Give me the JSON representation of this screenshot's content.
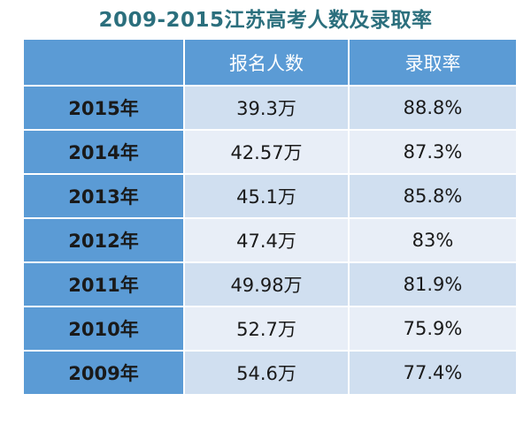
{
  "title": "2009-2015江苏高考人数及录取率",
  "table": {
    "headers": [
      "",
      "报名人数",
      "录取率"
    ],
    "rows": [
      {
        "year": "2015年",
        "applicants": "39.3万",
        "rate": "88.8%"
      },
      {
        "year": "2014年",
        "applicants": "42.57万",
        "rate": "87.3%"
      },
      {
        "year": "2013年",
        "applicants": "45.1万",
        "rate": "85.8%"
      },
      {
        "year": "2012年",
        "applicants": "47.4万",
        "rate": "83%"
      },
      {
        "year": "2011年",
        "applicants": "49.98万",
        "rate": "81.9%"
      },
      {
        "year": "2010年",
        "applicants": "52.7万",
        "rate": "75.9%"
      },
      {
        "year": "2009年",
        "applicants": "54.6万",
        "rate": "77.4%"
      }
    ]
  },
  "colors": {
    "title": "#2b6f7d",
    "header_bg": "#5b9bd5",
    "row_odd_bg": "#d0dff0",
    "row_even_bg": "#e8eef7"
  }
}
